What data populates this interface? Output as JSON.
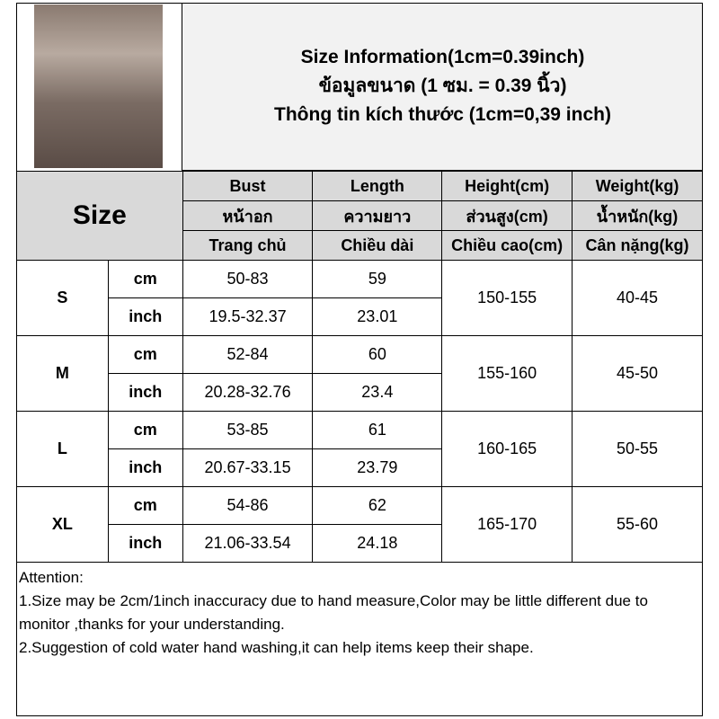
{
  "title": {
    "line1": "Size Information(1cm=0.39inch)",
    "line2": "ข้อมูลขนาด (1 ซม. = 0.39 นิ้ว)",
    "line3": "Thông tin kích thước (1cm=0,39 inch)"
  },
  "header": {
    "size": "Size",
    "cols": [
      [
        "Bust",
        "หน้าอก",
        "Trang chủ"
      ],
      [
        "Length",
        "ความยาว",
        "Chiều dài"
      ],
      [
        "Height(cm)",
        "ส่วนสูง(cm)",
        "Chiều cao(cm)"
      ],
      [
        "Weight(kg)",
        "น้ำหนัก(kg)",
        "Cân nặng(kg)"
      ]
    ]
  },
  "rows": [
    {
      "size": "S",
      "cm_label": "cm",
      "inch_label": "inch",
      "bust_cm": "50-83",
      "length_cm": "59",
      "bust_inch": "19.5-32.37",
      "length_inch": "23.01",
      "height": "150-155",
      "weight": "40-45"
    },
    {
      "size": "M",
      "cm_label": "cm",
      "inch_label": "inch",
      "bust_cm": "52-84",
      "length_cm": "60",
      "bust_inch": "20.28-32.76",
      "length_inch": "23.4",
      "height": "155-160",
      "weight": "45-50"
    },
    {
      "size": "L",
      "cm_label": "cm",
      "inch_label": "inch",
      "bust_cm": "53-85",
      "length_cm": "61",
      "bust_inch": "20.67-33.15",
      "length_inch": "23.79",
      "height": "160-165",
      "weight": "50-55"
    },
    {
      "size": "XL",
      "cm_label": "cm",
      "inch_label": "inch",
      "bust_cm": "54-86",
      "length_cm": "62",
      "bust_inch": "21.06-33.54",
      "length_inch": "24.18",
      "height": "165-170",
      "weight": "55-60"
    }
  ],
  "attention": {
    "heading": "Attention:",
    "note1": "1.Size may be 2cm/1inch inaccuracy due to hand measure,Color may be little different due to monitor ,thanks for your understanding.",
    "note2": "2.Suggestion of cold water hand washing,it can help items keep their shape."
  }
}
